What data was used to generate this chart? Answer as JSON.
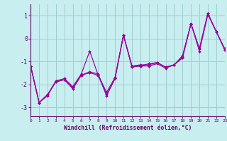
{
  "xlabel": "Windchill (Refroidissement éolien,°C)",
  "background_color": "#c8eef0",
  "grid_color": "#9ecdd0",
  "line_color": "#990099",
  "x": [
    0,
    1,
    2,
    3,
    4,
    5,
    6,
    7,
    8,
    9,
    10,
    11,
    12,
    13,
    14,
    15,
    16,
    17,
    18,
    19,
    20,
    21,
    22,
    23
  ],
  "series": [
    [
      -1.2,
      -2.8,
      -2.5,
      -1.85,
      -1.8,
      -2.2,
      -1.6,
      -1.5,
      -1.6,
      -2.5,
      -1.75,
      0.15,
      -1.25,
      -1.2,
      -1.2,
      -1.1,
      -1.3,
      -1.15,
      -0.8,
      0.65,
      -0.45,
      1.1,
      0.3,
      -0.45
    ],
    [
      -1.2,
      -2.8,
      -2.45,
      -1.85,
      -1.75,
      -2.1,
      -1.55,
      -0.55,
      -1.6,
      -2.35,
      -1.7,
      0.15,
      -1.2,
      -1.15,
      -1.15,
      -1.05,
      -1.25,
      -1.15,
      -0.75,
      0.65,
      -0.45,
      1.1,
      0.3,
      -0.45
    ],
    [
      -1.2,
      -2.8,
      -2.45,
      -1.9,
      -1.8,
      -2.15,
      -1.6,
      -1.45,
      -1.55,
      -2.45,
      -1.75,
      0.15,
      -1.2,
      -1.2,
      -1.1,
      -1.05,
      -1.25,
      -1.15,
      -0.85,
      0.65,
      -0.55,
      1.05,
      0.3,
      -0.5
    ]
  ],
  "xlim": [
    0,
    23
  ],
  "ylim": [
    -3.4,
    1.5
  ],
  "yticks": [
    -3,
    -2,
    -1,
    0,
    1
  ],
  "xticks": [
    0,
    1,
    2,
    3,
    4,
    5,
    6,
    7,
    8,
    9,
    10,
    11,
    12,
    13,
    14,
    15,
    16,
    17,
    18,
    19,
    20,
    21,
    22,
    23
  ]
}
